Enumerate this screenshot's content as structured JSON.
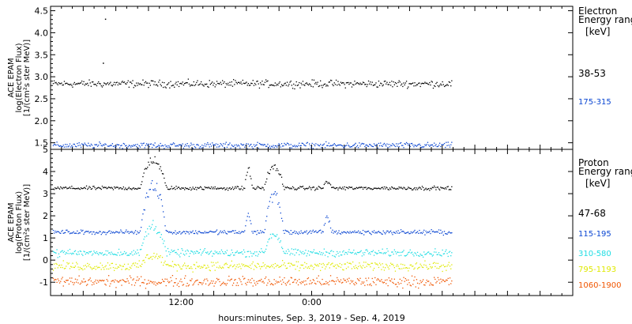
{
  "x_axis": {
    "label": "hours:minutes, Sep.  3, 2019 - Sep.  4, 2019",
    "tick_labels": [
      "12:00",
      "0:00"
    ]
  },
  "chart_data": [
    {
      "type": "scatter",
      "panel": "electron",
      "ylabel": [
        "ACE EPAM",
        "log(Electron Flux)",
        "[1/(cm²s ster MeV)]"
      ],
      "ylim": [
        1.35,
        4.6
      ],
      "yticks": [
        "1.5",
        "2.0",
        "2.5",
        "3.0",
        "3.5",
        "4.0",
        "4.5"
      ],
      "legend_title": [
        "Electron",
        "Energy range",
        "[keV]"
      ],
      "x_unit": "hours since Sep 3 00:00",
      "xlim": [
        0,
        48
      ],
      "data_end": 36.9,
      "series": [
        {
          "name": "38-53",
          "color": "#000000",
          "baseline": 2.85,
          "noise": 0.05,
          "extra_points": [
            {
              "x": 5.0,
              "y": 4.32
            },
            {
              "x": 4.8,
              "y": 3.32
            }
          ]
        },
        {
          "name": "175-315",
          "color": "#0a46d2",
          "baseline": 1.45,
          "noise": 0.04
        }
      ]
    },
    {
      "type": "scatter",
      "panel": "proton",
      "ylabel": [
        "ACE EPAM",
        "log(Proton Flux)",
        "[1/(cm²s ster MeV)]"
      ],
      "ylim": [
        -1.6,
        5
      ],
      "yticks": [
        "-1",
        "0",
        "1",
        "2",
        "3",
        "4",
        "5"
      ],
      "legend_title": [
        "Proton",
        "Energy range",
        "[keV]"
      ],
      "x_unit": "hours since Sep 3 00:00",
      "xlim": [
        0,
        48
      ],
      "data_end": 36.9,
      "series": [
        {
          "name": "47-68",
          "color": "#000000",
          "baseline": 3.27,
          "noise": 0.05,
          "bursts": [
            {
              "x0": 8.2,
              "x1": 10.6,
              "peak": 4.7
            },
            {
              "x0": 17.8,
              "x1": 18.5,
              "peak": 4.2
            },
            {
              "x0": 19.6,
              "x1": 21.4,
              "peak": 4.35
            },
            {
              "x0": 25.0,
              "x1": 25.8,
              "peak": 3.6
            }
          ]
        },
        {
          "name": "115-195",
          "color": "#0a46d2",
          "baseline": 1.28,
          "noise": 0.06,
          "bursts": [
            {
              "x0": 8.2,
              "x1": 10.6,
              "peak": 3.7
            },
            {
              "x0": 17.8,
              "x1": 18.5,
              "peak": 2.1
            },
            {
              "x0": 19.6,
              "x1": 21.4,
              "peak": 3.1
            },
            {
              "x0": 25.0,
              "x1": 25.8,
              "peak": 2.0
            }
          ]
        },
        {
          "name": "310-580",
          "color": "#20dde3",
          "baseline": 0.35,
          "noise": 0.1,
          "bursts": [
            {
              "x0": 8.2,
              "x1": 10.6,
              "peak": 1.7
            },
            {
              "x0": 19.6,
              "x1": 21.4,
              "peak": 1.3
            }
          ]
        },
        {
          "name": "795-1193",
          "color": "#dfe900",
          "baseline": -0.25,
          "noise": 0.12,
          "bursts": [
            {
              "x0": 8.2,
              "x1": 10.6,
              "peak": 0.3
            }
          ]
        },
        {
          "name": "1060-1900",
          "color": "#f05500",
          "baseline": -0.95,
          "noise": 0.14
        }
      ]
    }
  ]
}
